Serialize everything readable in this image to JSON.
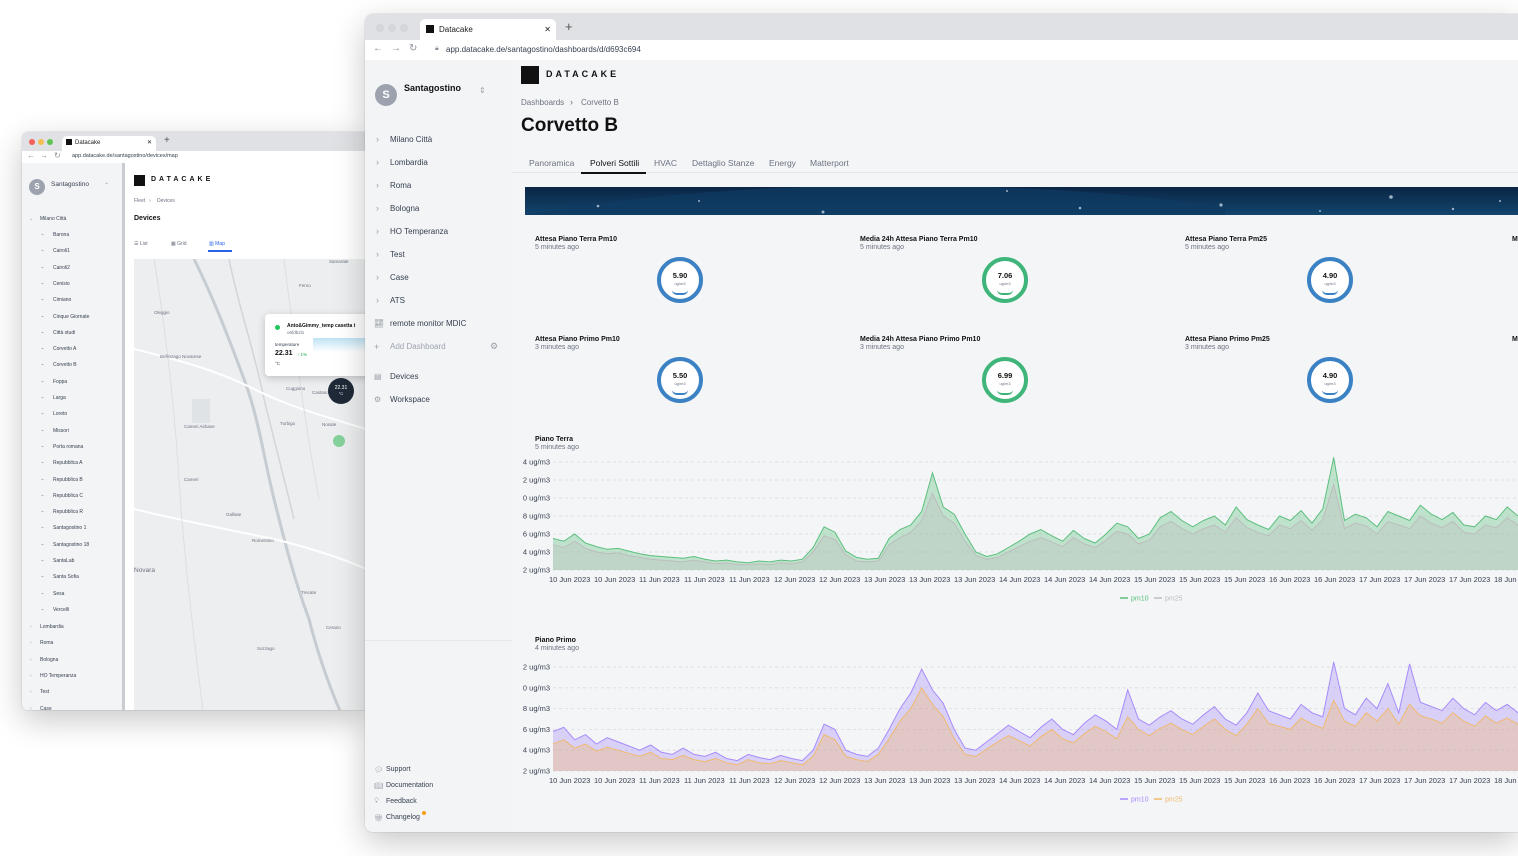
{
  "back_window": {
    "tab_title": "Datacake",
    "url": "app.datacake.de/santagostino/devices/map",
    "workspace": "Santagostino",
    "avatar_letter": "S",
    "brand": "DATACAKE",
    "breadcrumb": [
      "Fleet",
      "Devices"
    ],
    "page_title": "Devices",
    "view_tabs": [
      "List",
      "Grid",
      "Map"
    ],
    "sidebar_group": "Milano Città",
    "sidebar_items": [
      "Barona",
      "Cairoli1",
      "Cairoli2",
      "Cenisio",
      "Cimiano",
      "Cinque Giornate",
      "Città studi",
      "Corvetto A",
      "Corvetto B",
      "Foppa",
      "Larga",
      "Loreto",
      "Missori",
      "Porta romana",
      "Repubblica A",
      "Repubblica B",
      "Repubblica C",
      "Repubblica R",
      "Santagostino 1",
      "Santagostino 18",
      "SantaLab",
      "Santa Sofia",
      "Sesa",
      "Vercelli"
    ],
    "sidebar_groups_after": [
      "Lombardia",
      "Roma",
      "Bologna",
      "HO Temperanza",
      "Test",
      "Case"
    ],
    "map_labels": [
      "Samarate",
      "Ferno",
      "Oleggio",
      "Bellinzago Novarese",
      "Cameri",
      "Galliate",
      "Romentino",
      "Trecate",
      "Novara",
      "Cerano",
      "Sozzago",
      "Turbigo",
      "Nosate",
      "Castano Primo",
      "Cuggiono",
      "Cameri Airbase"
    ],
    "popup": {
      "name": "Anto&Gimmy_temp casetta t",
      "id": "o6fdb2l1",
      "label": "temperature",
      "value": "22.31",
      "change": "↑ 1%",
      "unit": "°C"
    },
    "marker_value": "22.31",
    "marker_unit": "°C"
  },
  "front_window": {
    "tab_title": "Datacake",
    "url": "app.datacake.de/santagostino/dashboards/d/d693c694",
    "workspace": "Santagostino",
    "avatar_letter": "S",
    "brand": "DATACAKE",
    "sidebar_items": [
      "Milano Città",
      "Lombardia",
      "Roma",
      "Bologna",
      "HO Temperanza",
      "Test",
      "Case",
      "ATS"
    ],
    "remote_monitor": "remote monitor MDIC",
    "add_dashboard": "Add Dashboard",
    "devices": "Devices",
    "workspace_link": "Workspace",
    "footer_links": [
      "Support",
      "Documentation",
      "Feedback",
      "Changelog"
    ],
    "breadcrumb": [
      "Dashboards",
      "Corvetto B"
    ],
    "page_title": "Corvetto B",
    "tabs": [
      "Panoramica",
      "Polveri Sottili",
      "HVAC",
      "Dettaglio Stanze",
      "Energy",
      "Matterport"
    ],
    "active_tab": "Polveri Sottili",
    "gauges": [
      {
        "title": "Attesa Piano Terra Pm10",
        "time": "5 minutes ago",
        "value": "5.90",
        "unit": "ug/m3",
        "color": "#3b82c4"
      },
      {
        "title": "Media 24h Attesa Piano Terra Pm10",
        "time": "5 minutes ago",
        "value": "7.06",
        "unit": "ug/m3",
        "color": "#3fb57a"
      },
      {
        "title": "Attesa Piano Terra Pm25",
        "time": "5 minutes ago",
        "value": "4.90",
        "unit": "ug/m3",
        "color": "#3b82c4"
      },
      {
        "title": "Attesa Piano Primo Pm10",
        "time": "3 minutes ago",
        "value": "5.50",
        "unit": "ug/m3",
        "color": "#3b82c4"
      },
      {
        "title": "Media 24h Attesa Piano Primo Pm10",
        "time": "3 minutes ago",
        "value": "6.99",
        "unit": "ug/m3",
        "color": "#3fb57a"
      },
      {
        "title": "Attesa Piano Primo Pm25",
        "time": "3 minutes ago",
        "value": "4.90",
        "unit": "ug/m3",
        "color": "#3b82c4"
      }
    ],
    "cut_gauge_letter": "M"
  },
  "chart_data": [
    {
      "type": "area",
      "title": "Piano Terra",
      "subtitle": "5 minutes ago",
      "y_tick_labels": [
        "4 ug/m3",
        "2 ug/m3",
        "0 ug/m3",
        "8 ug/m3",
        "6 ug/m3",
        "4 ug/m3",
        "2 ug/m3"
      ],
      "x_tick_labels": [
        "10 Jun 2023",
        "10 Jun 2023",
        "11 Jun 2023",
        "11 Jun 2023",
        "11 Jun 2023",
        "12 Jun 2023",
        "12 Jun 2023",
        "13 Jun 2023",
        "13 Jun 2023",
        "13 Jun 2023",
        "14 Jun 2023",
        "14 Jun 2023",
        "14 Jun 2023",
        "15 Jun 2023",
        "15 Jun 2023",
        "15 Jun 2023",
        "16 Jun 2023",
        "16 Jun 2023",
        "17 Jun 2023",
        "17 Jun 2023",
        "17 Jun 2023",
        "18 Jun"
      ],
      "legend": [
        "pm10",
        "pm25"
      ],
      "series": [
        {
          "name": "pm10",
          "color": "#5cbf7e",
          "values": [
            5.5,
            5.2,
            6.0,
            5.0,
            4.6,
            4.3,
            4.4,
            4.1,
            3.8,
            3.6,
            3.5,
            3.4,
            3.3,
            3.5,
            3.2,
            3.0,
            3.1,
            2.9,
            2.8,
            3.0,
            2.9,
            3.1,
            3.0,
            3.2,
            4.5,
            6.8,
            6.2,
            4.1,
            3.4,
            3.2,
            3.3,
            5.5,
            6.5,
            7.0,
            8.5,
            12.8,
            9.0,
            8.2,
            6.0,
            4.0,
            3.5,
            3.8,
            4.5,
            5.2,
            6.0,
            6.5,
            5.8,
            5.2,
            6.4,
            5.5,
            5.0,
            6.0,
            7.2,
            6.8,
            5.5,
            6.0,
            7.8,
            8.5,
            7.5,
            6.8,
            7.5,
            8.0,
            7.0,
            9.0,
            7.6,
            7.0,
            6.5,
            8.0,
            7.5,
            8.6,
            7.2,
            8.8,
            14.5,
            7.5,
            8.2,
            7.8,
            6.8,
            8.5,
            8.0,
            7.5,
            9.2,
            8.2,
            7.6,
            8.4,
            7.0,
            6.8,
            8.0,
            7.6,
            9.0,
            8.0
          ]
        },
        {
          "name": "pm25",
          "color": "#bdbdbd",
          "values": [
            4.8,
            4.5,
            5.2,
            4.4,
            4.0,
            3.8,
            3.9,
            3.6,
            3.4,
            3.2,
            3.1,
            3.0,
            2.9,
            3.1,
            2.9,
            2.7,
            2.8,
            2.6,
            2.6,
            2.7,
            2.6,
            2.8,
            2.7,
            2.9,
            4.0,
            5.8,
            5.4,
            3.7,
            3.0,
            2.9,
            3.0,
            4.8,
            5.6,
            6.2,
            7.5,
            10.5,
            8.0,
            7.2,
            5.2,
            3.6,
            3.2,
            3.4,
            4.0,
            4.6,
            5.2,
            5.6,
            5.1,
            4.6,
            5.6,
            4.9,
            4.5,
            5.3,
            6.3,
            6.0,
            4.9,
            5.3,
            6.8,
            7.4,
            6.6,
            6.0,
            6.6,
            7.0,
            6.2,
            7.8,
            6.7,
            6.2,
            5.8,
            7.0,
            6.6,
            7.5,
            6.4,
            7.6,
            11.5,
            6.6,
            7.2,
            6.9,
            6.0,
            7.4,
            7.0,
            6.6,
            8.0,
            7.2,
            6.7,
            7.4,
            6.2,
            6.0,
            7.0,
            6.7,
            7.8,
            7.0
          ]
        }
      ]
    },
    {
      "type": "area",
      "title": "Piano Primo",
      "subtitle": "4 minutes ago",
      "y_tick_labels": [
        "2 ug/m3",
        "0 ug/m3",
        "8 ug/m3",
        "6 ug/m3",
        "4 ug/m3",
        "2 ug/m3"
      ],
      "x_tick_labels": [
        "10 Jun 2023",
        "10 Jun 2023",
        "11 Jun 2023",
        "11 Jun 2023",
        "11 Jun 2023",
        "12 Jun 2023",
        "12 Jun 2023",
        "13 Jun 2023",
        "13 Jun 2023",
        "13 Jun 2023",
        "14 Jun 2023",
        "14 Jun 2023",
        "14 Jun 2023",
        "15 Jun 2023",
        "15 Jun 2023",
        "15 Jun 2023",
        "16 Jun 2023",
        "16 Jun 2023",
        "17 Jun 2023",
        "17 Jun 2023",
        "17 Jun 2023",
        "18 Jun"
      ],
      "legend": [
        "pm10",
        "pm25"
      ],
      "series": [
        {
          "name": "pm10",
          "color": "#a78bfa",
          "values": [
            5.8,
            6.2,
            5.0,
            5.5,
            4.6,
            5.2,
            4.8,
            4.4,
            4.0,
            4.5,
            3.8,
            3.6,
            4.2,
            3.6,
            3.4,
            3.8,
            3.2,
            3.0,
            3.6,
            3.3,
            3.1,
            3.5,
            3.2,
            3.0,
            4.0,
            6.5,
            6.0,
            4.0,
            3.6,
            3.4,
            4.2,
            6.0,
            8.0,
            9.5,
            11.8,
            9.8,
            8.5,
            6.0,
            4.2,
            4.0,
            4.8,
            5.6,
            6.4,
            5.8,
            5.2,
            6.2,
            7.0,
            6.0,
            5.5,
            6.6,
            7.4,
            6.8,
            6.0,
            9.8,
            7.0,
            6.4,
            7.2,
            7.8,
            7.0,
            6.5,
            7.4,
            8.2,
            7.0,
            6.4,
            7.6,
            9.5,
            7.8,
            7.4,
            7.0,
            8.4,
            7.6,
            7.2,
            12.5,
            8.0,
            7.4,
            9.0,
            8.0,
            10.4,
            7.6,
            12.3,
            8.6,
            8.2,
            7.8,
            9.0,
            8.0,
            7.4,
            8.6,
            7.8,
            8.4,
            7.6
          ]
        },
        {
          "name": "pm25",
          "color": "#f0b96e",
          "values": [
            4.6,
            5.0,
            4.2,
            4.6,
            3.9,
            4.3,
            4.0,
            3.7,
            3.4,
            3.8,
            3.2,
            3.1,
            3.5,
            3.1,
            2.9,
            3.2,
            2.8,
            2.6,
            3.1,
            2.8,
            2.7,
            3.0,
            2.8,
            2.6,
            3.4,
            5.5,
            5.0,
            3.4,
            3.1,
            2.9,
            3.6,
            5.1,
            6.8,
            8.0,
            10.0,
            8.4,
            7.2,
            5.1,
            3.6,
            3.4,
            4.1,
            4.8,
            5.4,
            4.9,
            4.4,
            5.3,
            6.0,
            5.1,
            4.7,
            5.6,
            6.3,
            5.8,
            5.1,
            7.2,
            6.0,
            5.4,
            6.1,
            6.6,
            6.0,
            5.5,
            6.3,
            7.0,
            6.0,
            5.4,
            6.5,
            8.0,
            6.6,
            6.3,
            6.0,
            7.1,
            6.5,
            6.1,
            8.8,
            6.8,
            6.3,
            7.6,
            6.8,
            8.0,
            6.5,
            8.4,
            7.3,
            7.0,
            6.6,
            7.6,
            6.8,
            6.3,
            7.3,
            6.6,
            7.1,
            6.5
          ]
        }
      ]
    }
  ]
}
